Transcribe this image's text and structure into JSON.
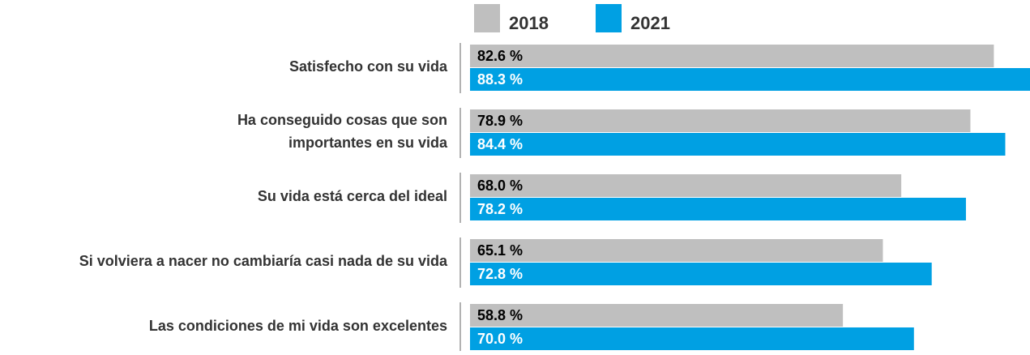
{
  "chart_data": {
    "type": "hbar",
    "categories": [
      "Satisfecho con su vida",
      "Ha conseguido cosas que son\nimportantes en su vida",
      "Su vida está cerca del ideal",
      "Si volviera a nacer no cambiaría casi nada de su vida",
      "Las condiciones de mi vida son excelentes"
    ],
    "series": [
      {
        "name": "2018",
        "color": "#bfbfbf",
        "values": [
          82.6,
          78.9,
          68.0,
          65.1,
          58.8
        ],
        "value_labels": [
          "82.6 %",
          "78.9 %",
          "68.0 %",
          "65.1 %",
          "58.8 %"
        ]
      },
      {
        "name": "2021",
        "color": "#00a0e3",
        "values": [
          88.3,
          84.4,
          78.2,
          72.8,
          70.0
        ],
        "value_labels": [
          "88.3 %",
          "84.4 %",
          "78.2 %",
          "72.8 %",
          "70.0 %"
        ]
      }
    ],
    "xlim": [
      0,
      88.3
    ],
    "legend": "top"
  }
}
